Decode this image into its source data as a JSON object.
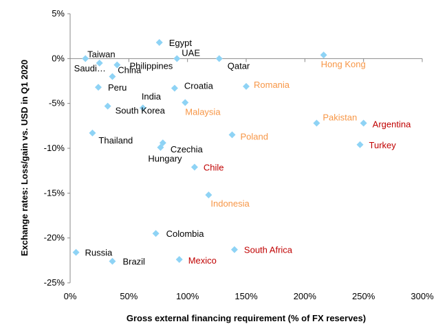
{
  "chart_data": {
    "type": "scatter",
    "title": "",
    "xlabel": "Gross external financing requirement (% of FX reserves)",
    "ylabel": "Exchange rates: Loss/gain vs. USD in Q1 2020",
    "xlim": [
      0,
      300
    ],
    "ylim": [
      -25,
      5
    ],
    "x_ticks": [
      0,
      50,
      100,
      150,
      200,
      250,
      300
    ],
    "x_tick_labels": [
      "0%",
      "50%",
      "100%",
      "150%",
      "200%",
      "250%",
      "300%"
    ],
    "y_ticks": [
      5,
      0,
      -5,
      -10,
      -15,
      -20,
      -25
    ],
    "y_tick_labels": [
      "5%",
      "0%",
      "-5%",
      "-10%",
      "-15%",
      "-20%",
      "-25%"
    ],
    "grid": false,
    "marker": "diamond",
    "marker_color": "#8ED3F5",
    "label_colors": {
      "black": "#000000",
      "orange": "#F79646",
      "red": "#C00000"
    },
    "points": [
      {
        "label": "Egypt",
        "x": 76,
        "y": 1.8,
        "color": "black"
      },
      {
        "label": "Taiwan",
        "x": 13,
        "y": 0.0,
        "color": "black"
      },
      {
        "label": "Saudi…",
        "x": 25,
        "y": -0.5,
        "color": "black"
      },
      {
        "label": "China",
        "x": 40,
        "y": -0.7,
        "color": "black"
      },
      {
        "label": "Philippines",
        "x": 36,
        "y": -2.0,
        "color": "black"
      },
      {
        "label": "UAE",
        "x": 91,
        "y": 0.0,
        "color": "black"
      },
      {
        "label": "Qatar",
        "x": 127,
        "y": 0.0,
        "color": "black"
      },
      {
        "label": "Hong Kong",
        "x": 216,
        "y": 0.4,
        "color": "orange"
      },
      {
        "label": "Peru",
        "x": 24,
        "y": -3.2,
        "color": "black"
      },
      {
        "label": "Croatia",
        "x": 89,
        "y": -3.3,
        "color": "black"
      },
      {
        "label": "Romania",
        "x": 150,
        "y": -3.1,
        "color": "orange"
      },
      {
        "label": "India",
        "x": 62,
        "y": -5.5,
        "color": "black"
      },
      {
        "label": "South Korea",
        "x": 32,
        "y": -5.3,
        "color": "black"
      },
      {
        "label": "Malaysia",
        "x": 98,
        "y": -4.9,
        "color": "orange"
      },
      {
        "label": "Pakistan",
        "x": 210,
        "y": -7.2,
        "color": "orange"
      },
      {
        "label": "Argentina",
        "x": 250,
        "y": -7.2,
        "color": "red"
      },
      {
        "label": "Thailand",
        "x": 19,
        "y": -8.3,
        "color": "black"
      },
      {
        "label": "Poland",
        "x": 138,
        "y": -8.5,
        "color": "orange"
      },
      {
        "label": "Turkey",
        "x": 247,
        "y": -9.6,
        "color": "red"
      },
      {
        "label": "Czechia",
        "x": 79,
        "y": -9.4,
        "color": "black"
      },
      {
        "label": "Hungary",
        "x": 77,
        "y": -9.9,
        "color": "black"
      },
      {
        "label": "Chile",
        "x": 106,
        "y": -12.1,
        "color": "red"
      },
      {
        "label": "Indonesia",
        "x": 118,
        "y": -15.2,
        "color": "orange"
      },
      {
        "label": "Colombia",
        "x": 73,
        "y": -19.5,
        "color": "black"
      },
      {
        "label": "Russia",
        "x": 5,
        "y": -21.6,
        "color": "black"
      },
      {
        "label": "South Africa",
        "x": 140,
        "y": -21.3,
        "color": "red"
      },
      {
        "label": "Brazil",
        "x": 36,
        "y": -22.6,
        "color": "black"
      },
      {
        "label": "Mexico",
        "x": 93,
        "y": -22.4,
        "color": "red"
      }
    ]
  }
}
